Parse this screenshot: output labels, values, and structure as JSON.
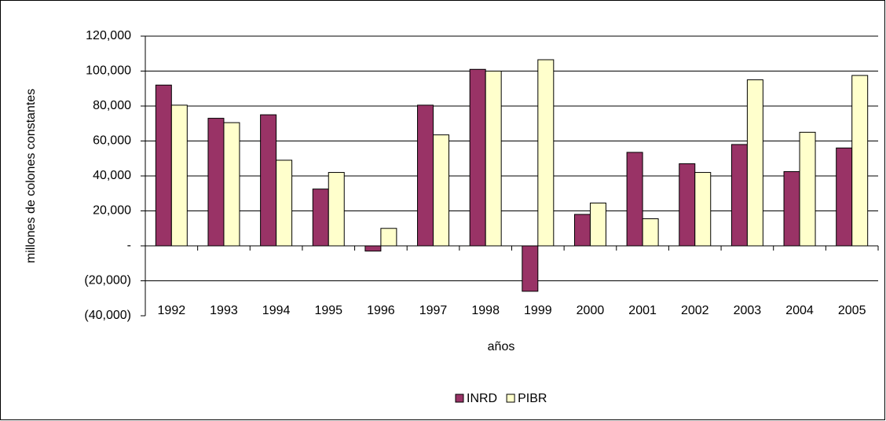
{
  "chart_data": {
    "type": "bar",
    "x_label": "años",
    "y_label": "millones de colones constantes",
    "categories": [
      "1992",
      "1993",
      "1994",
      "1995",
      "1996",
      "1997",
      "1998",
      "1999",
      "2000",
      "2001",
      "2002",
      "2003",
      "2004",
      "2005"
    ],
    "series": [
      {
        "name": "INRD",
        "color": "#993366",
        "values": [
          92000,
          73000,
          75000,
          32500,
          -3000,
          80500,
          101000,
          -26000,
          18000,
          53500,
          47000,
          58000,
          42500,
          56000
        ]
      },
      {
        "name": "PIBR",
        "color": "#ffffcc",
        "values": [
          80500,
          70500,
          49000,
          42000,
          10000,
          63500,
          100000,
          106500,
          24500,
          15500,
          42000,
          95000,
          65000,
          97500
        ]
      }
    ],
    "ylim": [
      -40000,
      120000
    ],
    "yticks": [
      {
        "value": -40000,
        "label": "(40,000)"
      },
      {
        "value": -20000,
        "label": "(20,000)"
      },
      {
        "value": 0,
        "label": "-"
      },
      {
        "value": 20000,
        "label": "20,000"
      },
      {
        "value": 40000,
        "label": "40,000"
      },
      {
        "value": 60000,
        "label": "60,000"
      },
      {
        "value": 80000,
        "label": "80,000"
      },
      {
        "value": 100000,
        "label": "100,000"
      },
      {
        "value": 120000,
        "label": "120,000"
      }
    ],
    "grid": true,
    "legend": "bottom"
  }
}
